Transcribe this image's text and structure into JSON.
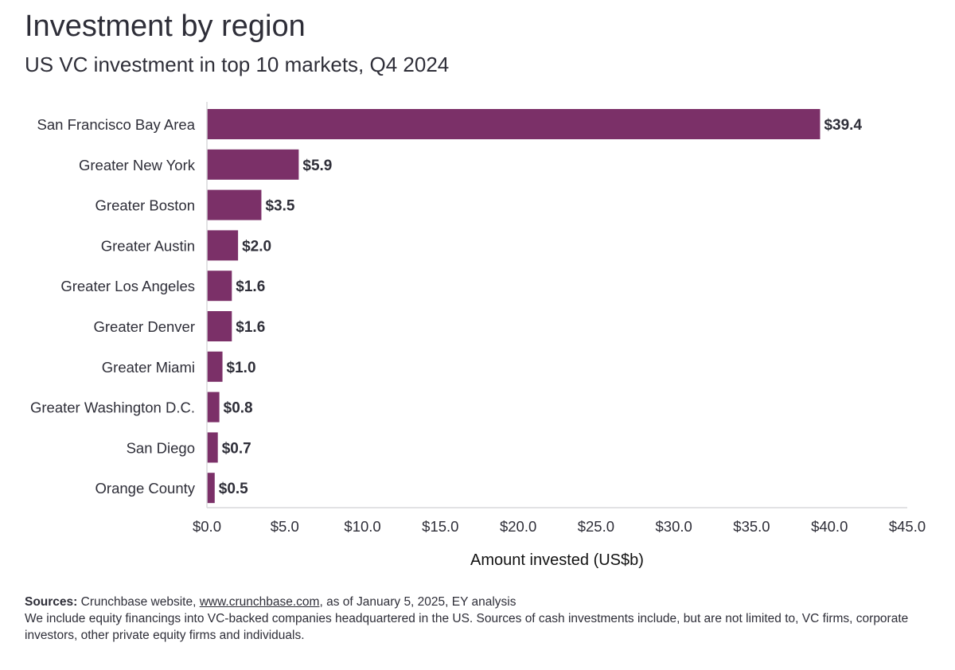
{
  "header": {
    "title": "Investment by region",
    "subtitle": "US VC investment in top 10 markets, Q4 2024"
  },
  "colors": {
    "bar": "#7b3068",
    "axis": "#d8d8dc",
    "text": "#2e2e38"
  },
  "chart_data": {
    "type": "bar",
    "orientation": "horizontal",
    "title": "Investment by region",
    "subtitle": "US VC investment in top 10 markets, Q4 2024",
    "xlabel": "Amount invested (US$b)",
    "ylabel": "",
    "categories": [
      "San Francisco Bay Area",
      "Greater New York",
      "Greater Boston",
      "Greater Austin",
      "Greater Los Angeles",
      "Greater Denver",
      "Greater Miami",
      "Greater Washington D.C.",
      "San Diego",
      "Orange County"
    ],
    "values": [
      39.4,
      5.9,
      3.5,
      2.0,
      1.6,
      1.6,
      1.0,
      0.8,
      0.7,
      0.5
    ],
    "value_labels": [
      "$39.4",
      "$5.9",
      "$3.5",
      "$2.0",
      "$1.6",
      "$1.6",
      "$1.0",
      "$0.8",
      "$0.7",
      "$0.5"
    ],
    "xlim": [
      0,
      45
    ],
    "xticks": [
      0,
      5,
      10,
      15,
      20,
      25,
      30,
      35,
      40,
      45
    ],
    "xtick_labels": [
      "$0.0",
      "$5.0",
      "$10.0",
      "$15.0",
      "$20.0",
      "$25.0",
      "$30.0",
      "$35.0",
      "$40.0",
      "$45.0"
    ],
    "grid": false,
    "legend": "none"
  },
  "footer": {
    "sources_label": "Sources:",
    "sources_text_before": " Crunchbase website, ",
    "sources_link": "www.crunchbase.com",
    "sources_text_after": ", as of January 5, 2025, EY analysis",
    "note": "We include equity financings into VC-backed companies headquartered in the US. Sources of cash investments include, but are not limited to, VC firms, corporate investors, other private equity firms and individuals."
  }
}
